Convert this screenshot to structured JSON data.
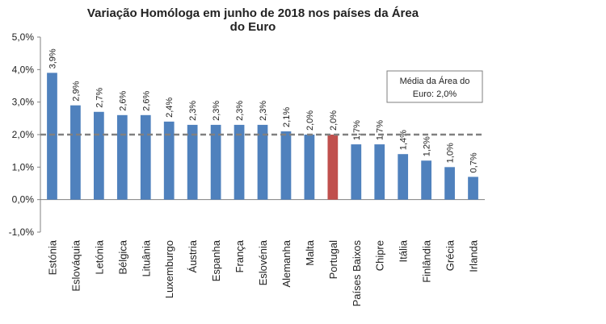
{
  "chart_data": {
    "type": "bar",
    "title_lines": [
      "Variação Homóloga em junho de 2018 nos países da Área",
      "do Euro"
    ],
    "categories": [
      "Estónia",
      "Eslováquia",
      "Letónia",
      "Bélgica",
      "Lituânia",
      "Luxemburgo",
      "Áustria",
      "Espanha",
      "França",
      "Eslovénia",
      "Alemanha",
      "Malta",
      "Portugal",
      "Países Baixos",
      "Chipre",
      "Itália",
      "Finlândia",
      "Grécia",
      "Irlanda"
    ],
    "values": [
      3.9,
      2.9,
      2.7,
      2.6,
      2.6,
      2.4,
      2.3,
      2.3,
      2.3,
      2.3,
      2.1,
      2.0,
      2.0,
      1.7,
      1.7,
      1.4,
      1.2,
      1.0,
      0.7
    ],
    "value_labels": [
      "3,9%",
      "2,9%",
      "2,7%",
      "2,6%",
      "2,6%",
      "2,4%",
      "2,3%",
      "2,3%",
      "2,3%",
      "2,3%",
      "2,1%",
      "2,0%",
      "2,0%",
      "1,7%",
      "1,7%",
      "1,4%",
      "1,2%",
      "1,0%",
      "0,7%"
    ],
    "highlight_category": "Portugal",
    "colors": {
      "bar": "#4F81BD",
      "highlight": "#C0504D",
      "reference_line": "#808080",
      "axis": "#808080"
    },
    "ylim": [
      -1.0,
      5.0
    ],
    "yticks": [
      -1.0,
      0.0,
      1.0,
      2.0,
      3.0,
      4.0,
      5.0
    ],
    "ytick_labels": [
      "-1,0%",
      "0,0%",
      "1,0%",
      "2,0%",
      "3,0%",
      "4,0%",
      "5,0%"
    ],
    "reference_line": {
      "value": 2.0,
      "label_lines": [
        "Média da Área do",
        "Euro: 2,0%"
      ]
    },
    "xlabel": "",
    "ylabel": "",
    "grid": false,
    "legend": "none"
  }
}
